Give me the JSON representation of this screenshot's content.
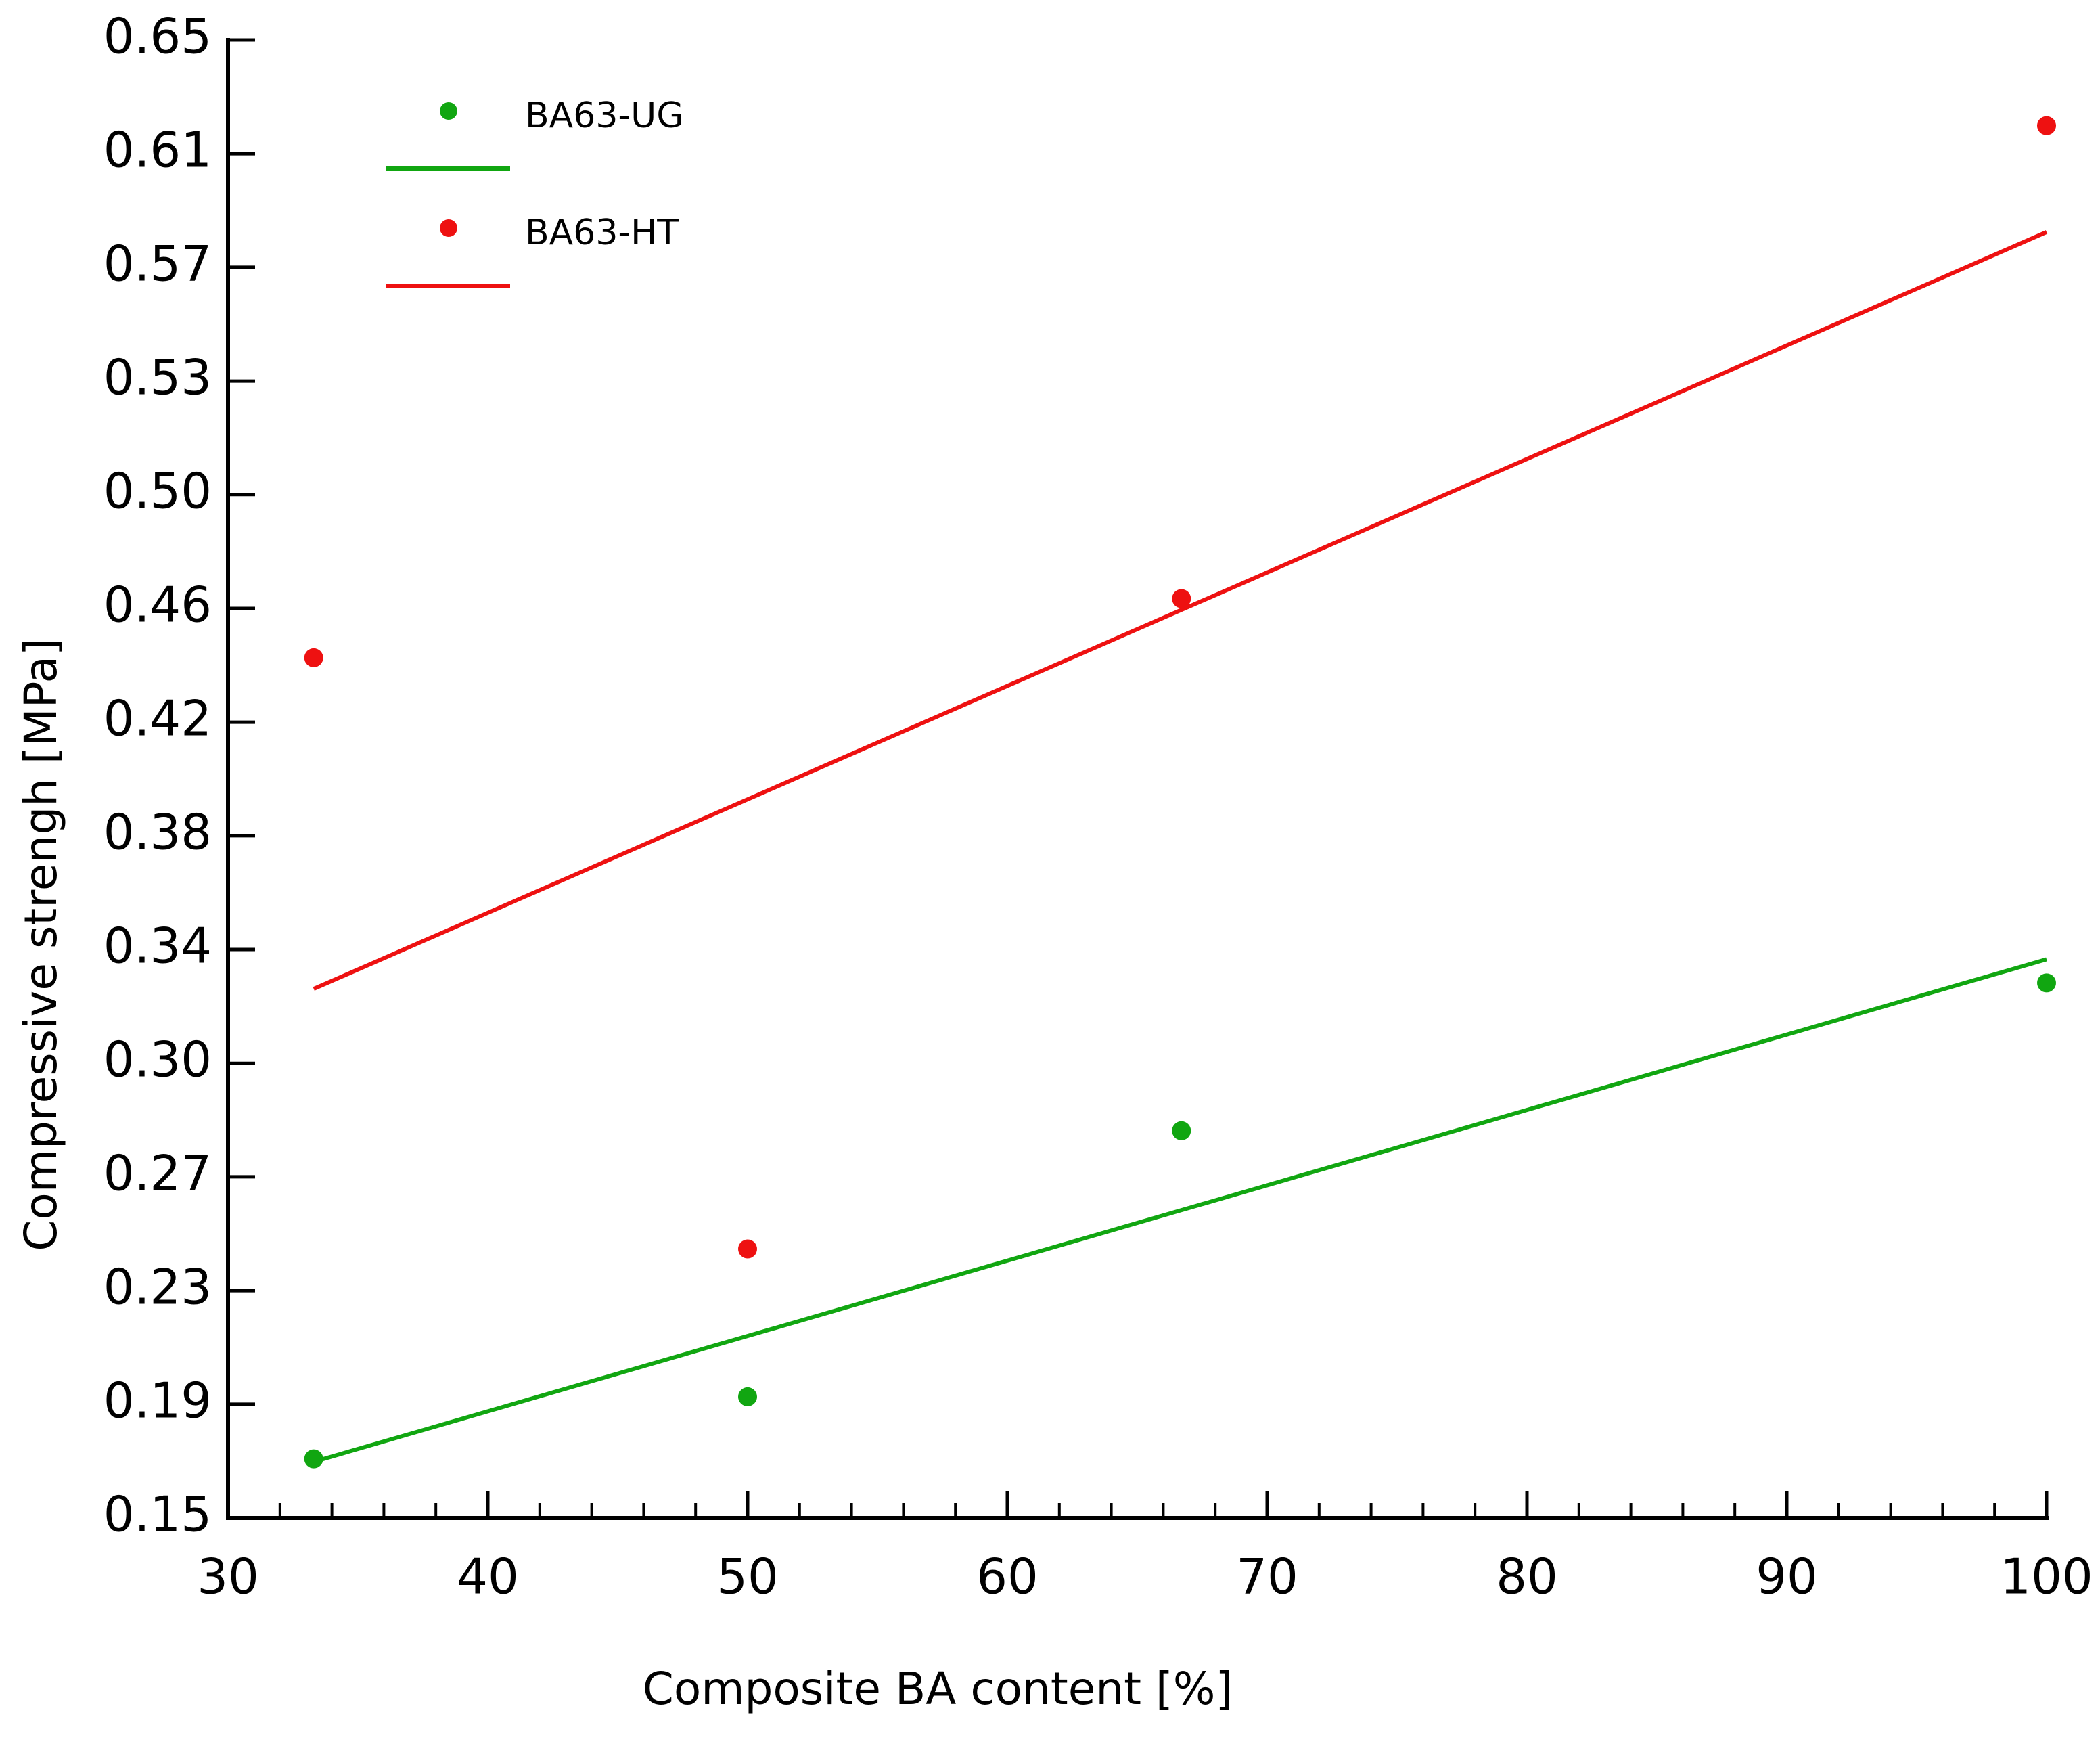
{
  "chart_data": {
    "type": "scatter",
    "x_label": "Composite BA content [%]",
    "y_label": "Compressive strengh [MPa]",
    "xlim": [
      30,
      100
    ],
    "xticks": [
      30,
      40,
      50,
      60,
      70,
      80,
      90,
      100
    ],
    "ylim": [
      0.15,
      0.65
    ],
    "yticks": [
      0.15,
      {
        "value": 0.1885,
        "label": "0.19"
      },
      {
        "value": 0.2269,
        "label": "0.23"
      },
      {
        "value": 0.2654,
        "label": "0.27"
      },
      {
        "value": 0.3038,
        "label": "0.30"
      },
      {
        "value": 0.3423,
        "label": "0.34"
      },
      {
        "value": 0.3808,
        "label": "0.38"
      },
      {
        "value": 0.4192,
        "label": "0.42"
      },
      {
        "value": 0.4577,
        "label": "0.46"
      },
      {
        "value": 0.4962,
        "label": "0.50"
      },
      {
        "value": 0.5346,
        "label": "0.53"
      },
      {
        "value": 0.5731,
        "label": "0.57"
      },
      {
        "value": 0.6115,
        "label": "0.61"
      },
      0.65
    ],
    "series": [
      {
        "name": "BA63-UG",
        "color": "#11a611",
        "x": [
          33.3,
          50,
          66.7,
          100
        ],
        "values": [
          0.17,
          0.191,
          0.281,
          0.331
        ],
        "trend_x": [
          33.3,
          100
        ],
        "trend": [
          0.169,
          0.339
        ]
      },
      {
        "name": "BA63-HT",
        "color": "#ee1111",
        "x": [
          33.3,
          50,
          66.7,
          100
        ],
        "values": [
          0.441,
          0.241,
          0.461,
          0.621
        ],
        "trend_x": [
          33.3,
          100
        ],
        "trend": [
          0.329,
          0.585
        ]
      }
    ]
  }
}
